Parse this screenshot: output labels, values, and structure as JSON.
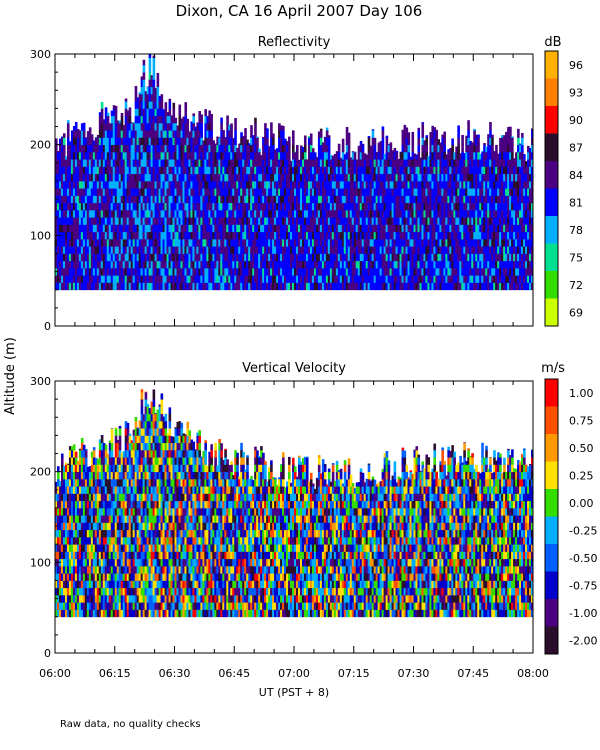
{
  "figure": {
    "title": "Dixon, CA 16 April 2007  Day 106",
    "shared_ylabel": "Altitude (m)",
    "xlabel": "UT  (PST + 8)",
    "footnote": "Raw data, no quality checks",
    "x_ticks": [
      "06:00",
      "06:15",
      "06:30",
      "06:45",
      "07:00",
      "07:15",
      "07:30",
      "07:45",
      "08:00"
    ]
  },
  "chart_data": [
    {
      "type": "heatmap",
      "title": "Reflectivity",
      "xlabel": "UT  (PST + 8)",
      "ylabel": "Altitude (m)",
      "xlim_minutes": [
        0,
        120
      ],
      "ylim": [
        0,
        300
      ],
      "y_ticks": [
        0,
        100,
        200,
        300
      ],
      "data_bottom_altitude": 40,
      "top_envelope": {
        "minutes": [
          0,
          10,
          15,
          20,
          22,
          25,
          28,
          33,
          40,
          50,
          60,
          75,
          90,
          105,
          120
        ],
        "altitude": [
          200,
          225,
          235,
          245,
          275,
          285,
          245,
          230,
          215,
          210,
          200,
          200,
          205,
          210,
          200
        ]
      },
      "colorbar": {
        "unit": "dB",
        "labels": [
          "96",
          "93",
          "90",
          "87",
          "84",
          "81",
          "78",
          "75",
          "72",
          "69"
        ],
        "colors": [
          "#FFB000",
          "#FF7F00",
          "#FF0000",
          "#2B0E2B",
          "#4B0082",
          "#0000FF",
          "#00B0FF",
          "#00E090",
          "#33DD00",
          "#CCFF00"
        ]
      }
    },
    {
      "type": "heatmap",
      "title": "Vertical Velocity",
      "xlabel": "UT  (PST + 8)",
      "ylabel": "Altitude (m)",
      "xlim_minutes": [
        0,
        120
      ],
      "ylim": [
        0,
        300
      ],
      "y_ticks": [
        0,
        100,
        200,
        300
      ],
      "data_bottom_altitude": 40,
      "top_envelope": {
        "minutes": [
          0,
          10,
          15,
          20,
          22,
          25,
          28,
          33,
          40,
          50,
          60,
          75,
          90,
          105,
          120
        ],
        "altitude": [
          205,
          225,
          235,
          250,
          275,
          285,
          255,
          240,
          220,
          210,
          200,
          200,
          210,
          215,
          205
        ]
      },
      "colorbar": {
        "unit": "m/s",
        "labels": [
          "1.00",
          "0.75",
          "0.50",
          "0.25",
          "0.00",
          "-0.25",
          "-0.50",
          "-0.75",
          "-1.00",
          "-2.00"
        ],
        "colors": [
          "#FF0000",
          "#FF5000",
          "#FF9900",
          "#FFE000",
          "#33DD00",
          "#00B0FF",
          "#0060FF",
          "#0000CC",
          "#4B0082",
          "#2B0E2B"
        ]
      }
    }
  ]
}
